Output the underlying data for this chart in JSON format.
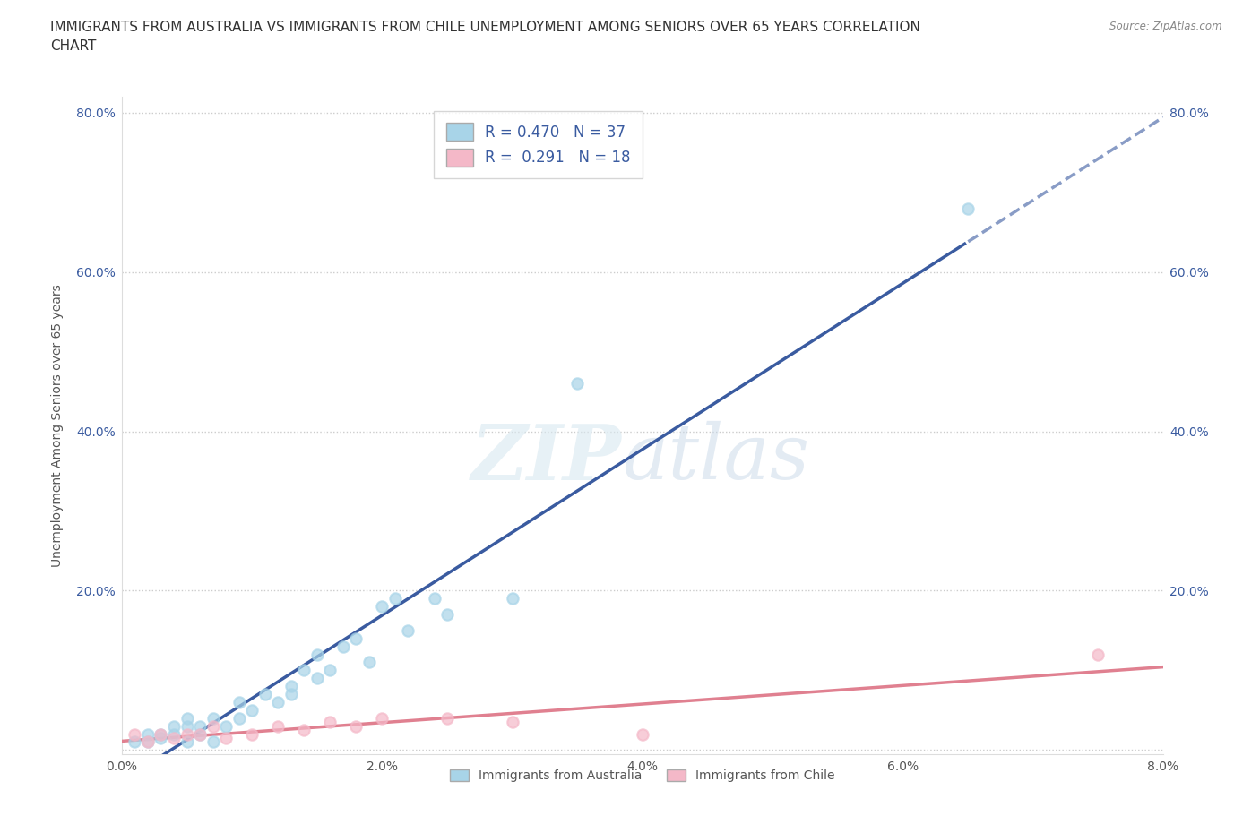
{
  "title": "IMMIGRANTS FROM AUSTRALIA VS IMMIGRANTS FROM CHILE UNEMPLOYMENT AMONG SENIORS OVER 65 YEARS CORRELATION\nCHART",
  "source": "Source: ZipAtlas.com",
  "xlabel": "",
  "ylabel": "Unemployment Among Seniors over 65 years",
  "xlim": [
    0.0,
    0.08
  ],
  "ylim": [
    -0.005,
    0.82
  ],
  "xticks": [
    0.0,
    0.02,
    0.04,
    0.06,
    0.08
  ],
  "xtick_labels": [
    "0.0%",
    "2.0%",
    "4.0%",
    "6.0%",
    "8.0%"
  ],
  "yticks": [
    0.0,
    0.2,
    0.4,
    0.6,
    0.8
  ],
  "ytick_labels": [
    "",
    "20.0%",
    "40.0%",
    "60.0%",
    "80.0%"
  ],
  "australia_x": [
    0.001,
    0.002,
    0.002,
    0.003,
    0.003,
    0.004,
    0.004,
    0.005,
    0.005,
    0.005,
    0.006,
    0.006,
    0.007,
    0.007,
    0.008,
    0.009,
    0.009,
    0.01,
    0.011,
    0.012,
    0.013,
    0.013,
    0.014,
    0.015,
    0.015,
    0.016,
    0.017,
    0.018,
    0.019,
    0.02,
    0.021,
    0.022,
    0.024,
    0.025,
    0.03,
    0.035,
    0.065
  ],
  "australia_y": [
    0.01,
    0.02,
    0.01,
    0.015,
    0.02,
    0.02,
    0.03,
    0.01,
    0.03,
    0.04,
    0.02,
    0.03,
    0.01,
    0.04,
    0.03,
    0.04,
    0.06,
    0.05,
    0.07,
    0.06,
    0.08,
    0.07,
    0.1,
    0.09,
    0.12,
    0.1,
    0.13,
    0.14,
    0.11,
    0.18,
    0.19,
    0.15,
    0.19,
    0.17,
    0.19,
    0.46,
    0.68
  ],
  "chile_x": [
    0.001,
    0.002,
    0.003,
    0.004,
    0.005,
    0.006,
    0.007,
    0.008,
    0.01,
    0.012,
    0.014,
    0.016,
    0.018,
    0.02,
    0.025,
    0.03,
    0.04,
    0.075
  ],
  "chile_y": [
    0.02,
    0.01,
    0.02,
    0.015,
    0.02,
    0.02,
    0.03,
    0.015,
    0.02,
    0.03,
    0.025,
    0.035,
    0.03,
    0.04,
    0.04,
    0.035,
    0.02,
    0.12
  ],
  "australia_color": "#A8D4E8",
  "chile_color": "#F4B8C8",
  "australia_line_color": "#3A5BA0",
  "chile_line_color": "#E08090",
  "R_australia": 0.47,
  "N_australia": 37,
  "R_chile": 0.291,
  "N_chile": 18,
  "background_color": "#FFFFFF",
  "title_color": "#333333",
  "title_fontsize": 11,
  "axis_label_fontsize": 10,
  "tick_fontsize": 10,
  "legend_fontsize": 12,
  "tick_color_y": "#3A5BA0",
  "tick_color_x": "#555555"
}
